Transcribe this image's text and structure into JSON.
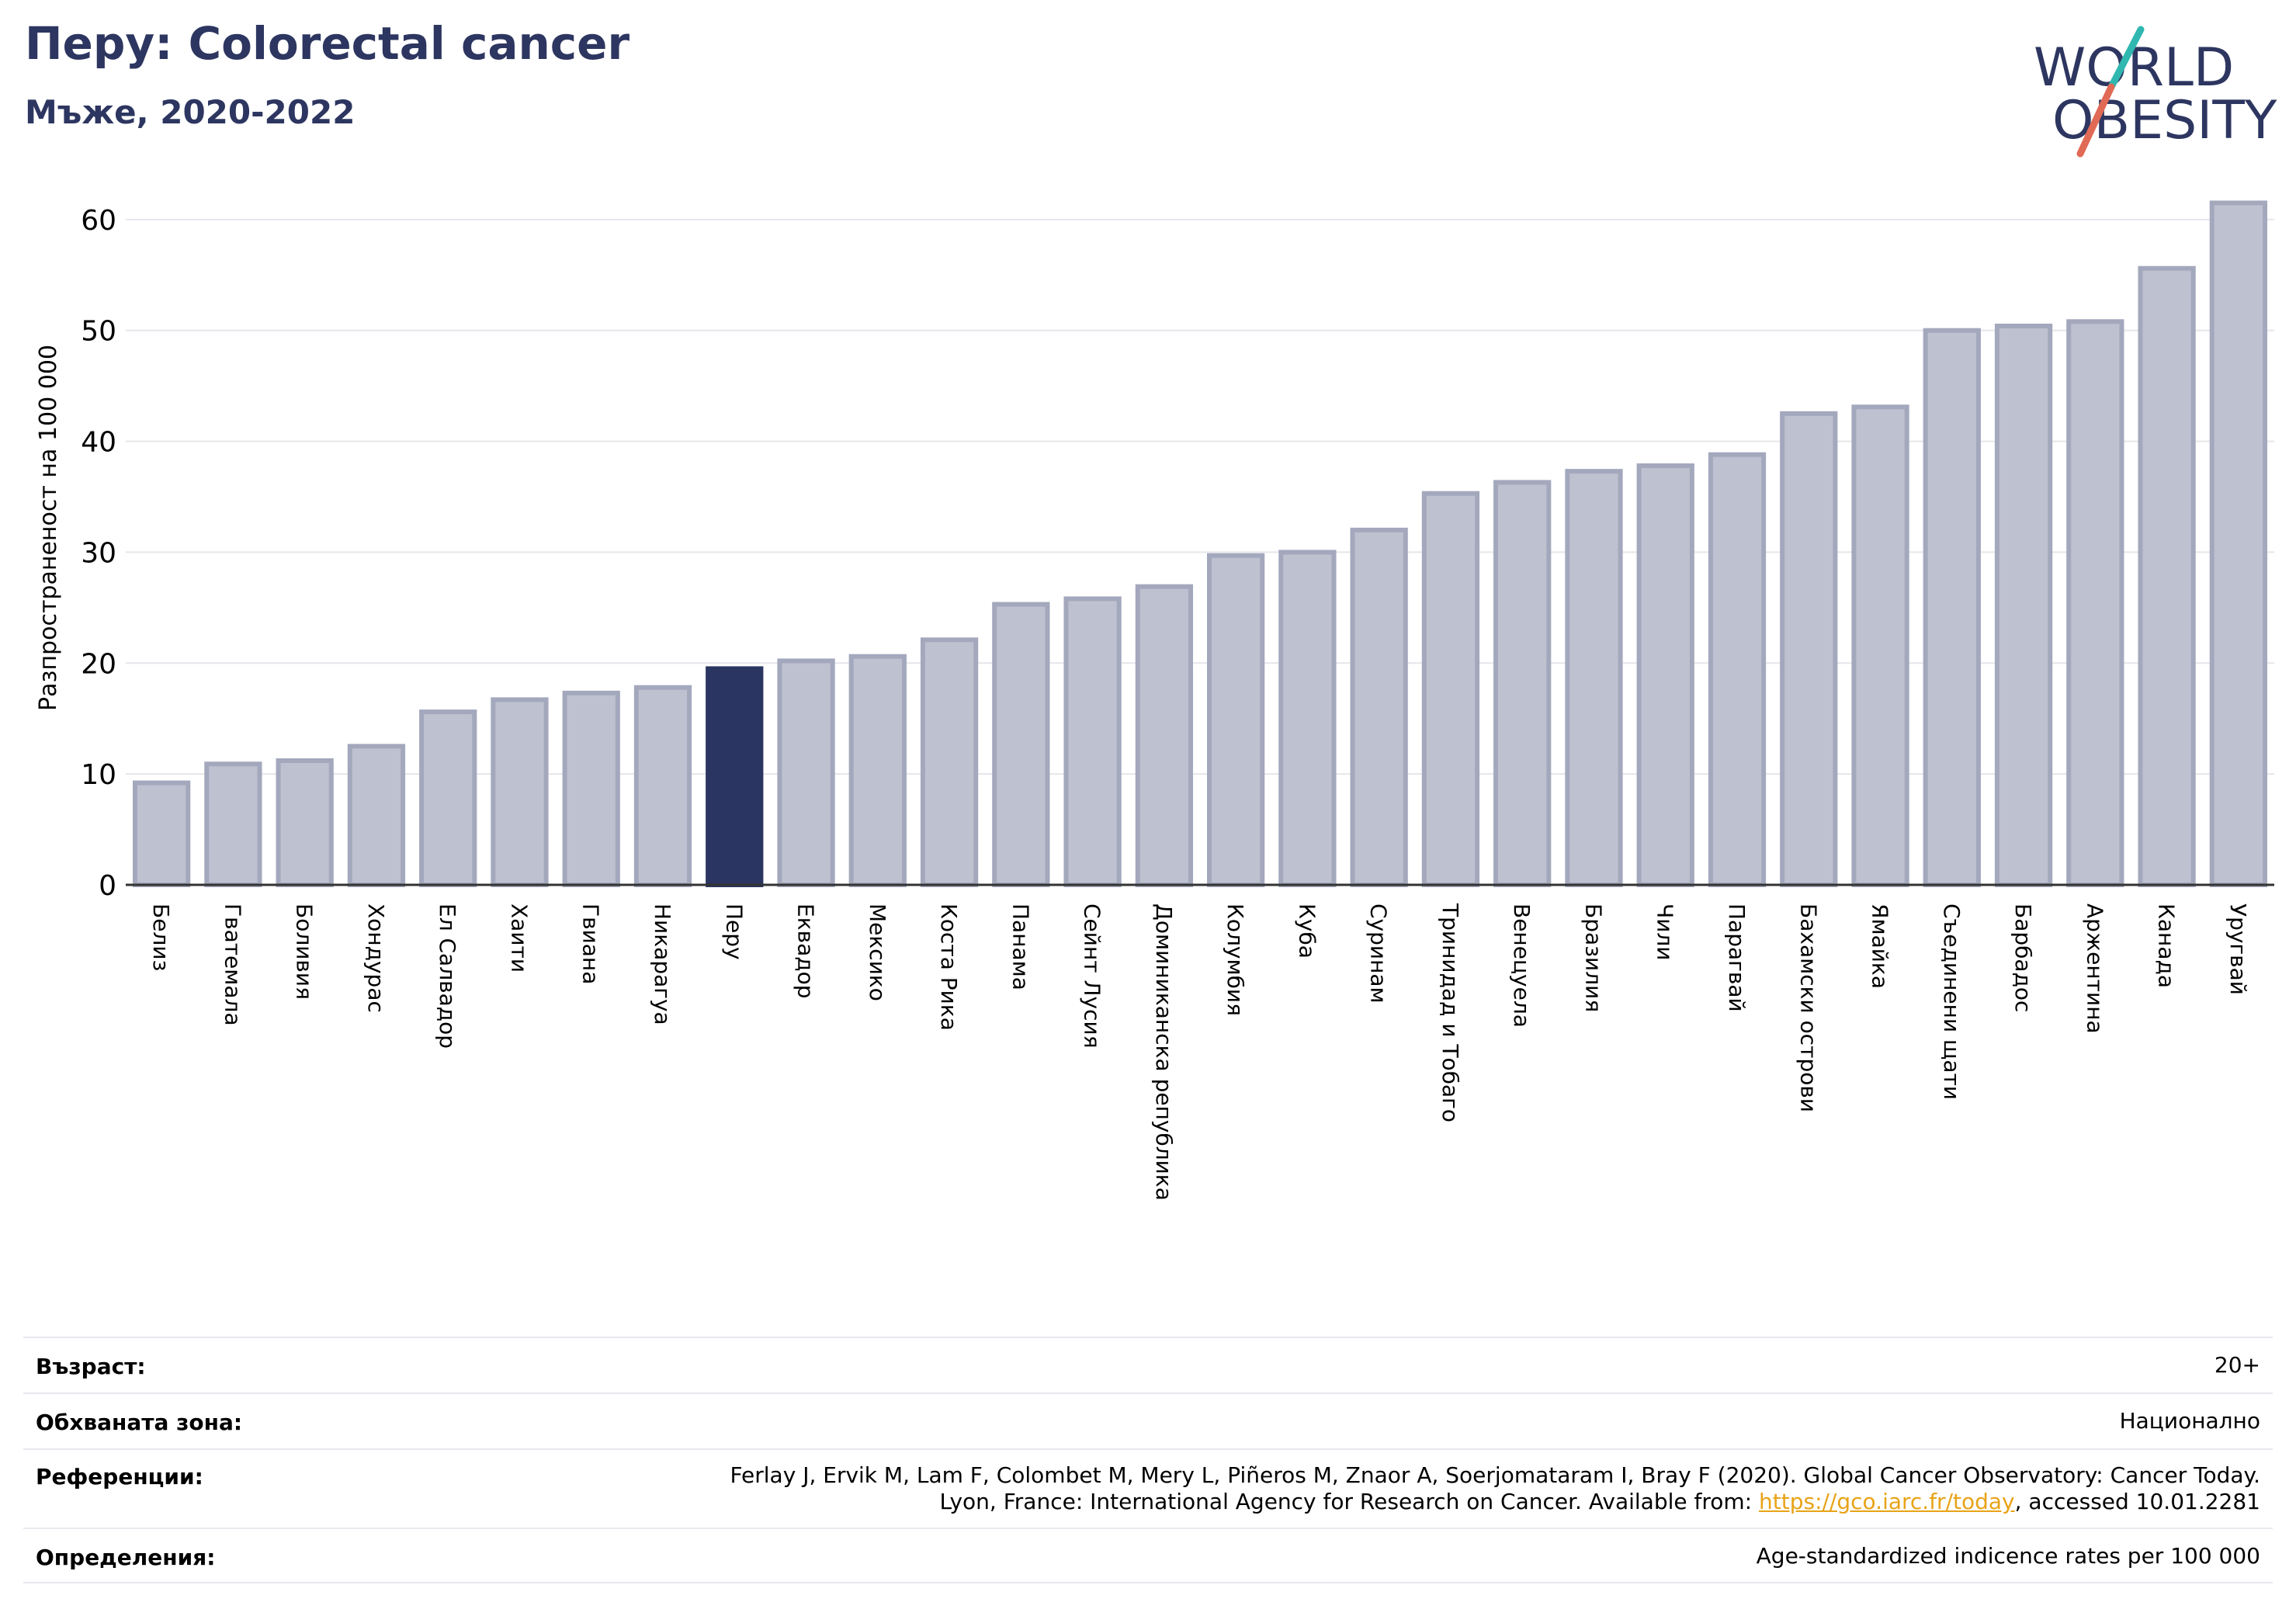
{
  "header": {
    "title": "Перу: Colorectal cancer",
    "subtitle": "Мъже, 2020-2022"
  },
  "logo": {
    "line1": "WORLD",
    "line2": "OBESITY",
    "colors": {
      "text": "#2d3660",
      "slash_teal": "#2fb7b0",
      "slash_red": "#e06a55"
    }
  },
  "chart_data": {
    "type": "bar",
    "ylabel": "Разпространеност  на 100 000",
    "xlabel": "",
    "ylim": [
      0,
      63
    ],
    "yticks": [
      0,
      10,
      20,
      30,
      40,
      50,
      60
    ],
    "grid": true,
    "highlight": "Перу",
    "colors": {
      "bar": "#bec1cf",
      "bar_edge": "#a3a8bd",
      "highlight": "#2a3561"
    },
    "categories": [
      "Белиз",
      "Гватемала",
      "Боливия",
      "Хондурас",
      "Ел Салвадор",
      "Хаити",
      "Гвиана",
      "Никарагуа",
      "Перу",
      "Еквадор",
      "Мексико",
      "Коста Рика",
      "Панама",
      "Сейнт Лусия",
      "Доминиканска република",
      "Колумбия",
      "Куба",
      "Суринам",
      "Тринидад и Тобаго",
      "Венецуела",
      "Бразилия",
      "Чили",
      "Парагвай",
      "Бахамски острови",
      "Ямайка",
      "Съединени щати",
      "Барбадос",
      "Аржентина",
      "Канада",
      "Уругвай"
    ],
    "values": [
      9.2,
      10.9,
      11.2,
      12.5,
      15.6,
      16.7,
      17.3,
      17.8,
      19.5,
      20.2,
      20.6,
      22.1,
      25.3,
      25.8,
      26.9,
      29.7,
      30.0,
      32.0,
      35.3,
      36.3,
      37.3,
      37.8,
      38.8,
      42.5,
      43.1,
      50.0,
      50.4,
      50.8,
      55.6,
      61.5
    ]
  },
  "meta": [
    {
      "label": "Възраст:",
      "value": "20+"
    },
    {
      "label": "Обхваната зона:",
      "value": "Национално"
    },
    {
      "label": "Референции:",
      "line1": "Ferlay J, Ervik M, Lam F, Colombet M, Mery L, Piñeros M, Znaor A, Soerjomataram I, Bray F (2020). Global Cancer Observatory: Cancer Today.",
      "line2_pre": "Lyon, France: International Agency for Research on Cancer. Available from: ",
      "link": "https://gco.iarc.fr/today",
      "line2_post": ", accessed 10.01.2281"
    },
    {
      "label": "Определения:",
      "value": "Age-standardized indicence rates per 100 000"
    }
  ]
}
